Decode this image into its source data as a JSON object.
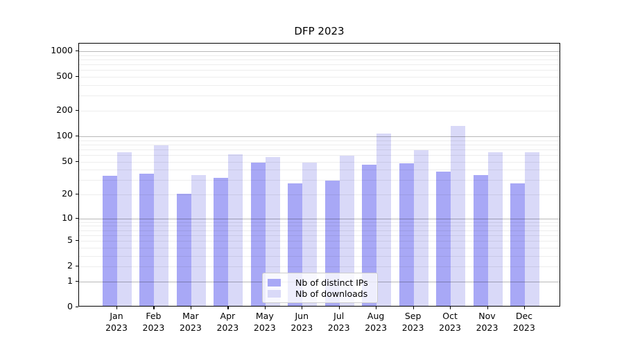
{
  "figure": {
    "background": "#ffffff"
  },
  "chart_data": {
    "type": "bar",
    "title": "DFP 2023",
    "categories": [
      "Jan 2023",
      "Feb 2023",
      "Mar 2023",
      "Apr 2023",
      "May 2023",
      "Jun 2023",
      "Jul 2023",
      "Aug 2023",
      "Sep 2023",
      "Oct 2023",
      "Nov 2023",
      "Dec 2023"
    ],
    "months": [
      "Jan",
      "Feb",
      "Mar",
      "Apr",
      "May",
      "Jun",
      "Jul",
      "Aug",
      "Sep",
      "Oct",
      "Nov",
      "Dec"
    ],
    "year_label": "2023",
    "series": [
      {
        "name": "Nb of distinct IPs",
        "color": "#a8a8f6",
        "values": [
          33,
          35,
          20,
          31,
          48,
          27,
          29,
          45,
          47,
          37,
          34,
          27
        ]
      },
      {
        "name": "Nb of downloads",
        "color": "#d9d9f8",
        "values": [
          63,
          76,
          34,
          60,
          56,
          48,
          58,
          105,
          67,
          130,
          63,
          63
        ]
      }
    ],
    "yscale": "log1p",
    "y_ticks": [
      0,
      1,
      2,
      5,
      10,
      20,
      50,
      100,
      200,
      500,
      1000
    ],
    "ylim": [
      0,
      1240
    ],
    "grid": {
      "horizontal": true,
      "minor_color": "#ededed",
      "major_color": "#b8b8b8"
    },
    "legend_position": "lower center"
  }
}
